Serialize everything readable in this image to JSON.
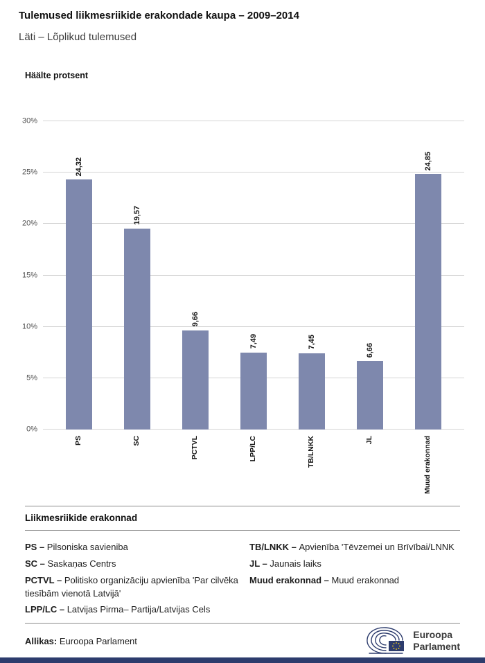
{
  "header": {
    "title": "Tulemused liikmesriikide erakondade kaupa – 2009–2014",
    "subtitle": "Läti – Lõplikud tulemused"
  },
  "chart_data": {
    "type": "bar",
    "ylabel": "Häälte protsent",
    "categories": [
      "PS",
      "SC",
      "PCTVL",
      "LPP/LC",
      "TB/LNKK",
      "JL",
      "Muud erakonnad"
    ],
    "values": [
      24.32,
      19.57,
      9.66,
      7.49,
      7.45,
      6.66,
      24.85
    ],
    "value_labels": [
      "24,32",
      "19,57",
      "9,66",
      "7,49",
      "7,45",
      "6,66",
      "24,85"
    ],
    "ylim": [
      0,
      30
    ],
    "yticks": [
      0,
      5,
      10,
      15,
      20,
      25,
      30
    ],
    "ytick_labels": [
      "0%",
      "5%",
      "10%",
      "15%",
      "20%",
      "25%",
      "30%"
    ],
    "bar_color": "#7e88ad",
    "grid": true,
    "legend_position": "below-chart"
  },
  "legend": {
    "heading": "Liikmesriikide erakonnad",
    "columns": [
      [
        {
          "abbr": "PS –",
          "name": "Pilsoniska savieniba"
        },
        {
          "abbr": "SC –",
          "name": "Saskaņas Centrs"
        },
        {
          "abbr": "PCTVL –",
          "name": "Politisko organizāciju apvienība 'Par cilvēka tiesībām vienotā Latvijā'"
        },
        {
          "abbr": "LPP/LC –",
          "name": "Latvijas Pirma– Partija/Latvijas Cels"
        }
      ],
      [
        {
          "abbr": "TB/LNKK –",
          "name": "Apvienība 'Tēvzemei un Brīvībai/LNNK"
        },
        {
          "abbr": "JL –",
          "name": "Jaunais laiks"
        },
        {
          "abbr": "Muud erakonnad –",
          "name": "Muud erakonnad"
        }
      ]
    ]
  },
  "footer": {
    "source_label": "Allikas:",
    "source_value": "Euroopa Parlament",
    "logo_line1": "Euroopa",
    "logo_line2": "Parlament"
  },
  "colors": {
    "bottom_bar": "#2d3c6d",
    "logo_navy": "#2d3c6d",
    "star_yellow": "#ffd617"
  }
}
